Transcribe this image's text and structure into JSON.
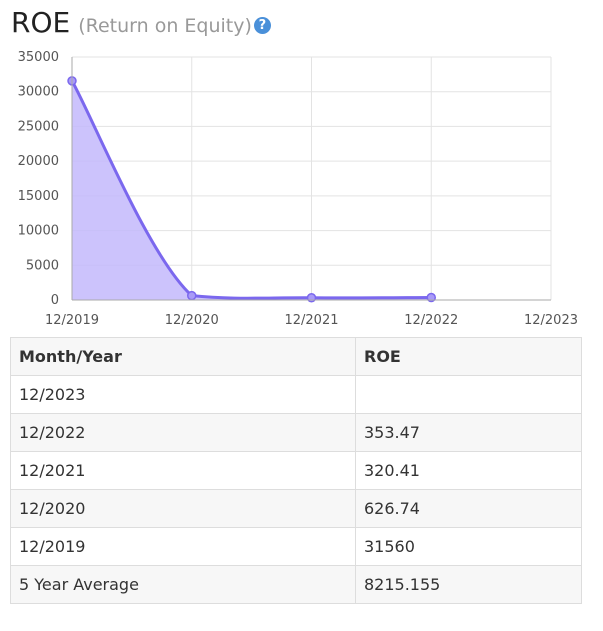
{
  "header": {
    "title": "ROE",
    "subtitle": "(Return on Equity)",
    "help_icon": "question-circle-icon"
  },
  "chart_data": {
    "type": "area",
    "x": [
      "12/2019",
      "12/2020",
      "12/2021",
      "12/2022"
    ],
    "x_ticks": [
      "12/2019",
      "12/2020",
      "12/2021",
      "12/2022",
      "12/2023"
    ],
    "y": [
      31560,
      626.74,
      320.41,
      353.47
    ],
    "ylim": [
      0,
      35000
    ],
    "y_ticks": [
      "0",
      "5000",
      "10000",
      "15000",
      "20000",
      "25000",
      "30000",
      "35000"
    ],
    "grid": true,
    "line_color": "#7b68ee",
    "fill_color": "#c3b8fb"
  },
  "table": {
    "headers": [
      "Month/Year",
      "ROE"
    ],
    "rows": [
      [
        "12/2023",
        ""
      ],
      [
        "12/2022",
        "353.47"
      ],
      [
        "12/2021",
        "320.41"
      ],
      [
        "12/2020",
        "626.74"
      ],
      [
        "12/2019",
        "31560"
      ],
      [
        "5 Year Average",
        "8215.155"
      ]
    ]
  }
}
